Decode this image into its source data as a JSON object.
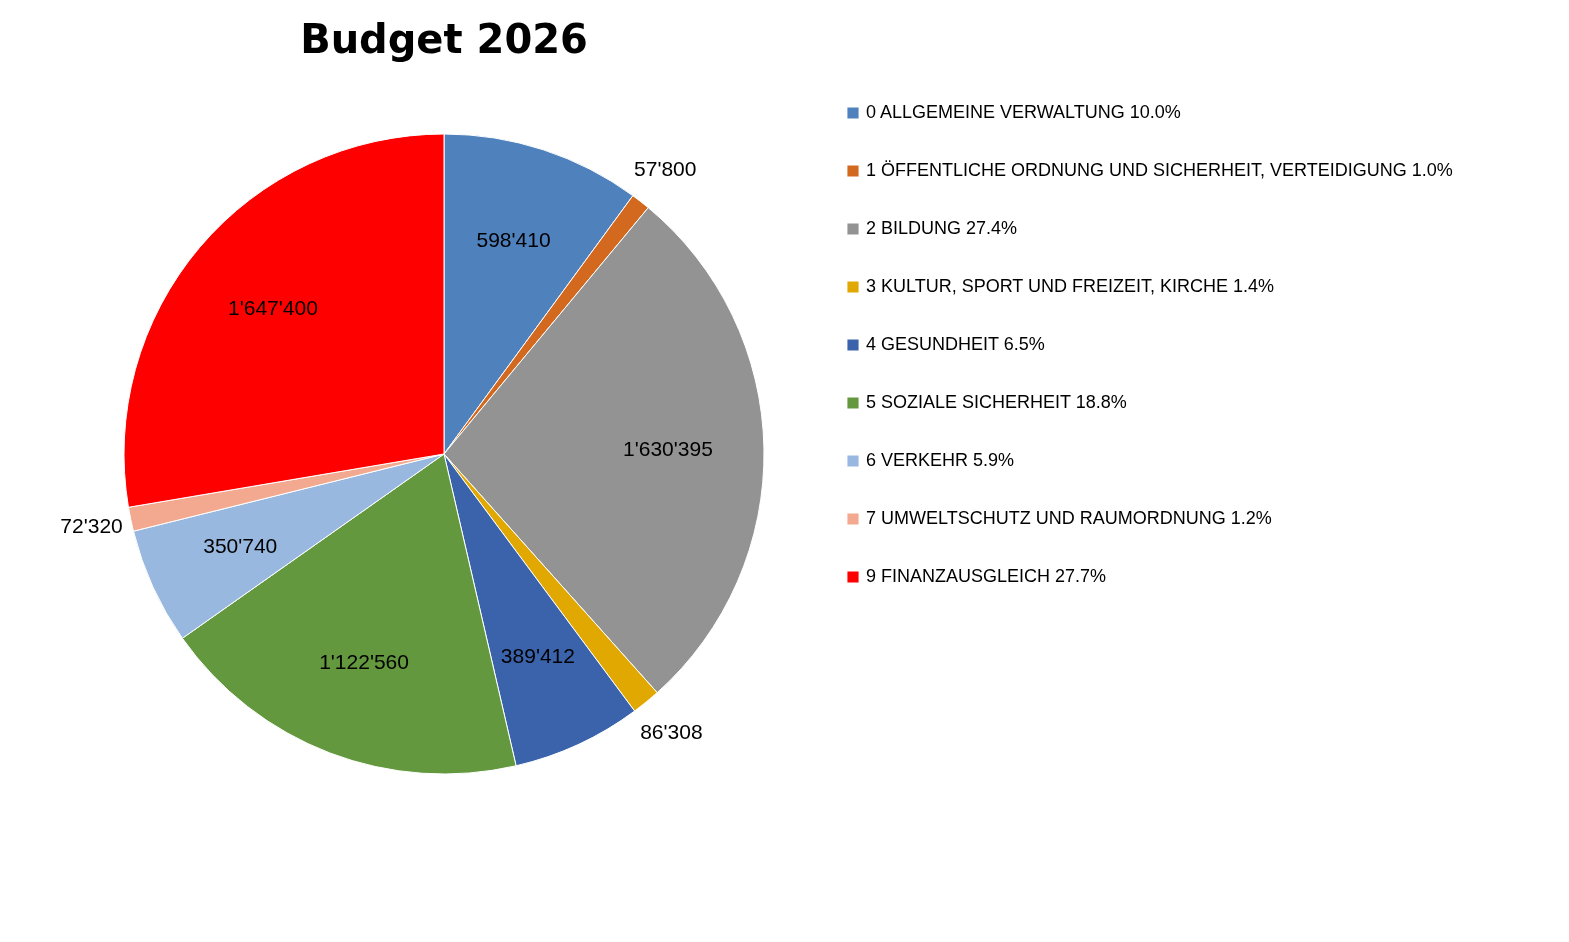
{
  "chart_data": {
    "type": "pie",
    "title": "Budget 2026",
    "categories": [
      "0 ALLGEMEINE VERWALTUNG 10.0%",
      "1 ÖFFENTLICHE ORDNUNG UND SICHERHEIT, VERTEIDIGUNG 1.0%",
      "2 BILDUNG 27.4%",
      "3 KULTUR, SPORT UND FREIZEIT, KIRCHE 1.4%",
      "4 GESUNDHEIT 6.5%",
      "5 SOZIALE SICHERHEIT 18.8%",
      "6 VERKEHR 5.9%",
      "7 UMWELTSCHUTZ UND RAUMORDNUNG 1.2%",
      "9 FINANZAUSGLEICH  27.7%"
    ],
    "values": [
      598410,
      57800,
      1630395,
      86308,
      389412,
      1122560,
      350740,
      72320,
      1647400
    ],
    "value_labels": [
      "598'410",
      "57'800",
      "1'630'395",
      "86'308",
      "389'412",
      "1'122'560",
      "350'740",
      "72'320",
      "1'647'400"
    ],
    "colors": [
      "#4f81bd",
      "#d2691e",
      "#939393",
      "#e0a800",
      "#3b63ab",
      "#63983e",
      "#98b8e0",
      "#f2a98f",
      "#ff0000"
    ],
    "legend": "right"
  }
}
